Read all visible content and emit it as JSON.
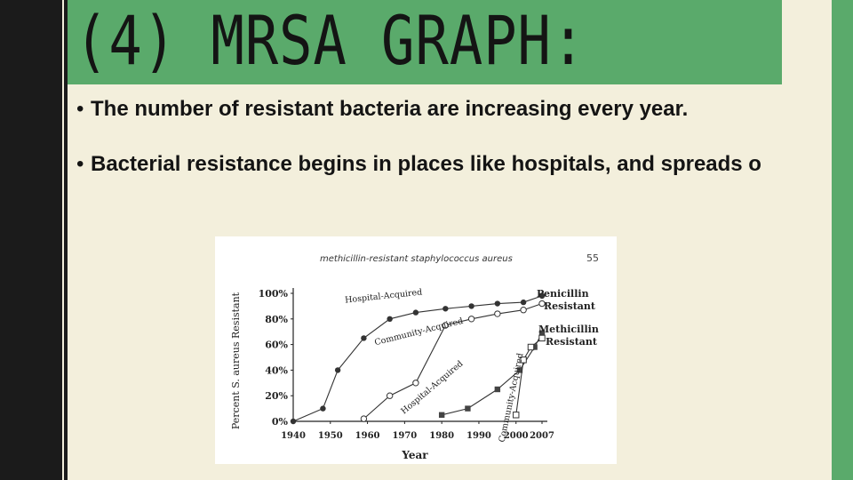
{
  "slide": {
    "title": "(4) MRSA GRAPH:",
    "bullets": [
      "The number of resistant bacteria are increasing every year.",
      "Bacterial resistance begins in places like hospitals, and spreads o"
    ],
    "colors": {
      "title_box": "#5aaa6b",
      "right_bar": "#5aaa6b",
      "left_bar": "#1b1b1b",
      "background": "#f3efdc"
    }
  },
  "chart_data": {
    "type": "line",
    "title": "methicillin-resistant staphylococcus aureus",
    "figure_number": "55",
    "xlabel": "Year",
    "ylabel": "Percent S. aureus Resistant",
    "xlim": [
      1940,
      2007
    ],
    "ylim": [
      0,
      100
    ],
    "x_ticks": [
      "1940",
      "1950",
      "1960",
      "1970",
      "1980",
      "1990",
      "2000",
      "2007"
    ],
    "y_ticks": [
      "0%",
      "20%",
      "40%",
      "60%",
      "80%",
      "100%"
    ],
    "series": [
      {
        "name": "Hospital-Acquired",
        "group": "Penicillin Resistant",
        "marker": "filled-circle",
        "points": [
          [
            1940,
            0
          ],
          [
            1948,
            10
          ],
          [
            1952,
            40
          ],
          [
            1959,
            65
          ],
          [
            1966,
            80
          ],
          [
            1973,
            85
          ],
          [
            1981,
            88
          ],
          [
            1988,
            90
          ],
          [
            1995,
            92
          ],
          [
            2002,
            93
          ],
          [
            2007,
            98
          ]
        ]
      },
      {
        "name": "Community-Acquired",
        "group": "Penicillin Resistant",
        "marker": "open-circle",
        "points": [
          [
            1959,
            2
          ],
          [
            1966,
            20
          ],
          [
            1973,
            30
          ],
          [
            1981,
            75
          ],
          [
            1988,
            80
          ],
          [
            1995,
            84
          ],
          [
            2002,
            87
          ],
          [
            2007,
            92
          ]
        ]
      },
      {
        "name": "Hospital-Acquired",
        "group": "Methicillin Resistant",
        "marker": "filled-square",
        "points": [
          [
            1980,
            5
          ],
          [
            1987,
            10
          ],
          [
            1995,
            25
          ],
          [
            2001,
            40
          ],
          [
            2005,
            58
          ],
          [
            2007,
            69
          ]
        ]
      },
      {
        "name": "Community-Acquired",
        "group": "Methicillin Resistant",
        "marker": "open-square",
        "points": [
          [
            2000,
            5
          ],
          [
            2002,
            48
          ],
          [
            2004,
            58
          ],
          [
            2007,
            65
          ]
        ]
      }
    ],
    "group_labels": [
      "Penicillin Resistant",
      "Methicillin Resistant"
    ],
    "legend": "right"
  }
}
